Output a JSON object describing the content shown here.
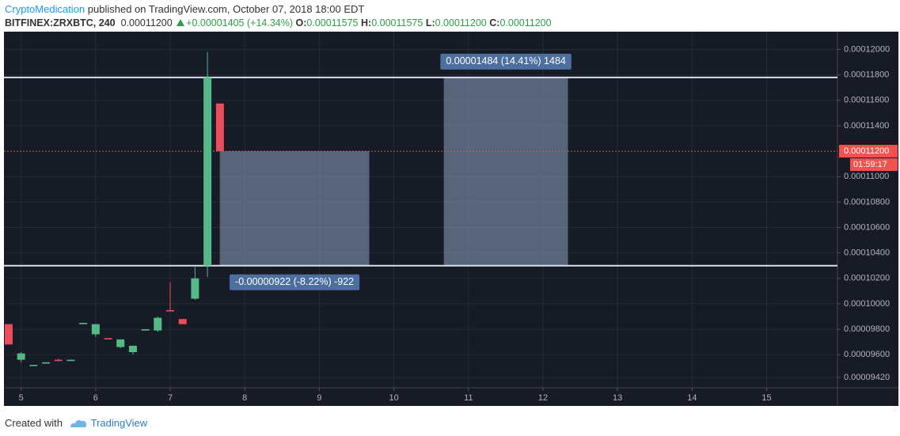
{
  "header": {
    "author": "CryptoMedication",
    "published": "published on TradingView.com, October 07, 2018 18:00 EDT",
    "symbol": "BITFINEX:ZRXBTC, 240",
    "last": "0.00011200",
    "change": "+0.00001405 (+14.34%)",
    "o_label": "O:",
    "o": "0.00011575",
    "h_label": "H:",
    "h": "0.00011575",
    "l_label": "L:",
    "l": "0.00011200",
    "c_label": "C:",
    "c": "0.00011200"
  },
  "chart_data": {
    "type": "candlestick",
    "x": [
      4.833,
      5,
      5.167,
      5.333,
      5.5,
      5.667,
      5.833,
      6,
      6.167,
      6.333,
      6.5,
      6.667,
      6.833,
      7,
      7.167,
      7.333,
      7.5,
      7.667
    ],
    "open": [
      9.84e-05,
      9.56e-05,
      9.51e-05,
      9.53e-05,
      9.56e-05,
      9.55e-05,
      9.84e-05,
      9.76e-05,
      9.73e-05,
      9.66e-05,
      9.62e-05,
      9.79e-05,
      9.79e-05,
      9.95e-05,
      9.88e-05,
      0.0001004,
      0.000103,
      0.00011575
    ],
    "high": [
      9.84e-05,
      9.62e-05,
      9.52e-05,
      9.54e-05,
      9.57e-05,
      9.56e-05,
      9.85e-05,
      9.84e-05,
      9.73e-05,
      9.72e-05,
      9.67e-05,
      9.8e-05,
      9.9e-05,
      0.0001017,
      9.88e-05,
      0.0001029,
      0.0001198,
      0.00011575
    ],
    "low": [
      9.68e-05,
      9.54e-05,
      9.51e-05,
      9.53e-05,
      9.55e-05,
      9.55e-05,
      9.84e-05,
      9.74e-05,
      9.72e-05,
      9.65e-05,
      9.6e-05,
      9.79e-05,
      9.78e-05,
      9.94e-05,
      9.84e-05,
      0.0001003,
      0.0001021,
      0.000112
    ],
    "close": [
      9.68e-05,
      9.61e-05,
      9.52e-05,
      9.54e-05,
      9.55e-05,
      9.56e-05,
      9.85e-05,
      9.84e-05,
      9.72e-05,
      9.72e-05,
      9.67e-05,
      9.8e-05,
      9.89e-05,
      9.94e-05,
      9.84e-05,
      0.000102,
      0.0001178,
      0.000112
    ],
    "up_color": "#53b987",
    "down_color": "#eb4d5c",
    "xlim": [
      4.77,
      15.95
    ],
    "xticks": [
      5,
      6,
      7,
      8,
      9,
      10,
      11,
      12,
      13,
      14,
      15
    ],
    "ylim": [
      9.34e-05,
      0.0001214
    ],
    "yticks": [
      {
        "value": 0.00012,
        "label": "0.00012000"
      },
      {
        "value": 0.000118,
        "label": "0.00011800"
      },
      {
        "value": 0.000116,
        "label": "0.00011600"
      },
      {
        "value": 0.000114,
        "label": "0.00011400"
      },
      {
        "value": 0.00011,
        "label": "0.00011000"
      },
      {
        "value": 0.000108,
        "label": "0.00010800"
      },
      {
        "value": 0.000106,
        "label": "0.00010600"
      },
      {
        "value": 0.000104,
        "label": "0.00010400"
      },
      {
        "value": 0.000102,
        "label": "0.00010200"
      },
      {
        "value": 0.0001,
        "label": "0.00010000"
      },
      {
        "value": 9.8e-05,
        "label": "0.00009800"
      },
      {
        "value": 9.6e-05,
        "label": "0.00009600"
      },
      {
        "value": 9.42e-05,
        "label": "0.00009420"
      }
    ],
    "grid": true,
    "hlines": [
      0.0001178,
      0.000103
    ],
    "last_price": {
      "value": 0.000112,
      "label": "0.00011200"
    },
    "countdown": "01:59:17",
    "measures": [
      {
        "label": "-0.00000922 (-8.22%) -922",
        "x": [
          7.665,
          9.67
        ],
        "y": [
          0.000103,
          0.000112
        ]
      },
      {
        "label": "0.00001484 (14.41%) 1484",
        "x": [
          10.67,
          12.335
        ],
        "y": [
          0.000103,
          0.0001178
        ]
      }
    ]
  },
  "footer": {
    "created": "Created with",
    "brand": "TradingView"
  }
}
